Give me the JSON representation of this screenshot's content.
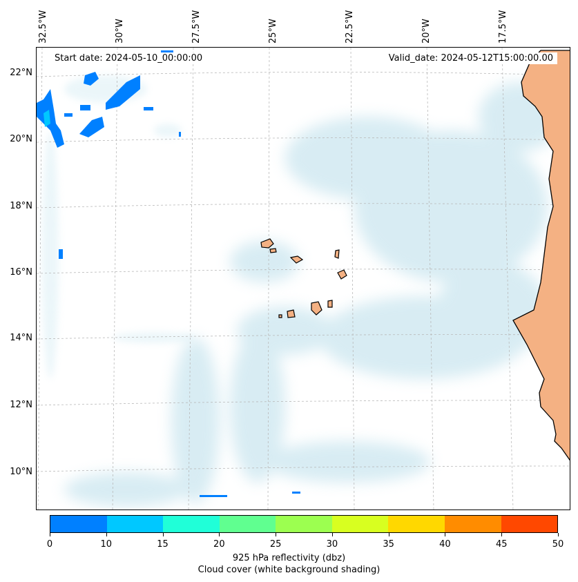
{
  "map": {
    "start_date": "Start date: 2024-05-10_00:00:00",
    "valid_date": "Valid_date: 2024-05-12T15:00:00.00",
    "longitude_labels": [
      "32.5°W",
      "30°W",
      "27.5°W",
      "25°W",
      "22.5°W",
      "20°W",
      "17.5°W"
    ],
    "latitude_labels": [
      "22°N",
      "20°N",
      "18°N",
      "16°N",
      "14°N",
      "12°N",
      "10°N"
    ],
    "colors": {
      "land": "#f4b183",
      "coastline": "#000000",
      "cloud": "#a9d6e5",
      "gridline": "#b0b0b0"
    }
  },
  "colorbar": {
    "ticks": [
      "0",
      "10",
      "15",
      "20",
      "25",
      "30",
      "35",
      "40",
      "45",
      "50"
    ],
    "colors": [
      "#0080ff",
      "#00c8ff",
      "#20ffd8",
      "#60ff90",
      "#9cff50",
      "#d8ff20",
      "#ffd800",
      "#ff8c00",
      "#ff4800"
    ],
    "label_line1": "925 hPa reflectivity (dbz)",
    "label_line2": "Cloud cover (white background shading)"
  }
}
